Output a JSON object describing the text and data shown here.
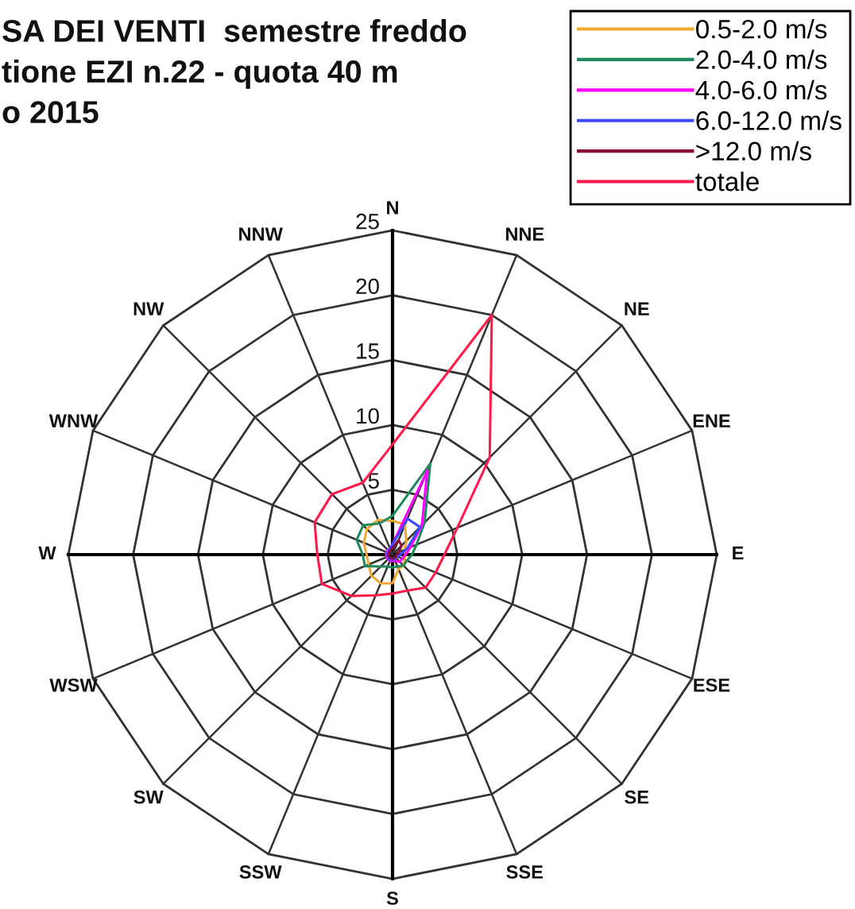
{
  "chart_data": {
    "type": "radar",
    "title": "SA DEI VENTI  semestre freddo\ntione EZI n.22 - quota 40 m\no 2015",
    "categories": [
      "N",
      "NNE",
      "NE",
      "ENE",
      "E",
      "ESE",
      "SE",
      "SSE",
      "S",
      "SSW",
      "SW",
      "WSW",
      "W",
      "WNW",
      "NW",
      "NNW"
    ],
    "ylim": [
      0,
      25
    ],
    "yticks": [
      5,
      10,
      15,
      20,
      25
    ],
    "grid": true,
    "legend": "top right",
    "series": [
      {
        "name": "0.5-2.0 m/s",
        "color": "#f0a830",
        "values": [
          2.6,
          2.5,
          1.5,
          1.0,
          1.0,
          1.0,
          1.2,
          1.2,
          2.2,
          2.4,
          2.3,
          2.0,
          2.0,
          2.4,
          2.8,
          2.9
        ]
      },
      {
        "name": "2.0-4.0 m/s",
        "color": "#1f8a5c",
        "values": [
          3.0,
          7.6,
          3.5,
          2.0,
          1.5,
          1.2,
          1.2,
          1.0,
          1.0,
          1.0,
          1.3,
          2.3,
          2.3,
          3.0,
          3.2,
          2.6
        ]
      },
      {
        "name": "4.0-6.0 m/s",
        "color": "#ff00ff",
        "values": [
          0.8,
          7.0,
          3.2,
          1.5,
          1.0,
          0.8,
          0.8,
          0.5,
          0.5,
          0.5,
          0.5,
          0.5,
          0.5,
          0.5,
          0.5,
          0.5
        ]
      },
      {
        "name": "6.0-12.0 m/s",
        "color": "#3f48ff",
        "values": [
          0.8,
          3.0,
          3.0,
          1.2,
          0.6,
          0.4,
          0.4,
          0.4,
          0.4,
          0.4,
          0.4,
          0.4,
          0.4,
          0.4,
          0.4,
          0.5
        ]
      },
      {
        "name": ">12.0 m/s",
        "color": "#8b0a3a",
        "values": [
          0.5,
          1.2,
          1.0,
          0.5,
          0.3,
          0.3,
          0.3,
          0.3,
          0.3,
          0.3,
          0.3,
          0.3,
          0.3,
          0.3,
          0.3,
          0.4
        ]
      },
      {
        "name": "totale",
        "color": "#ff1a4a",
        "values": [
          8.5,
          20,
          10.6,
          5.4,
          4.0,
          3.6,
          3.6,
          3.0,
          3.0,
          3.4,
          4.5,
          5.9,
          5.8,
          6.5,
          6.6,
          6.0
        ]
      }
    ]
  }
}
